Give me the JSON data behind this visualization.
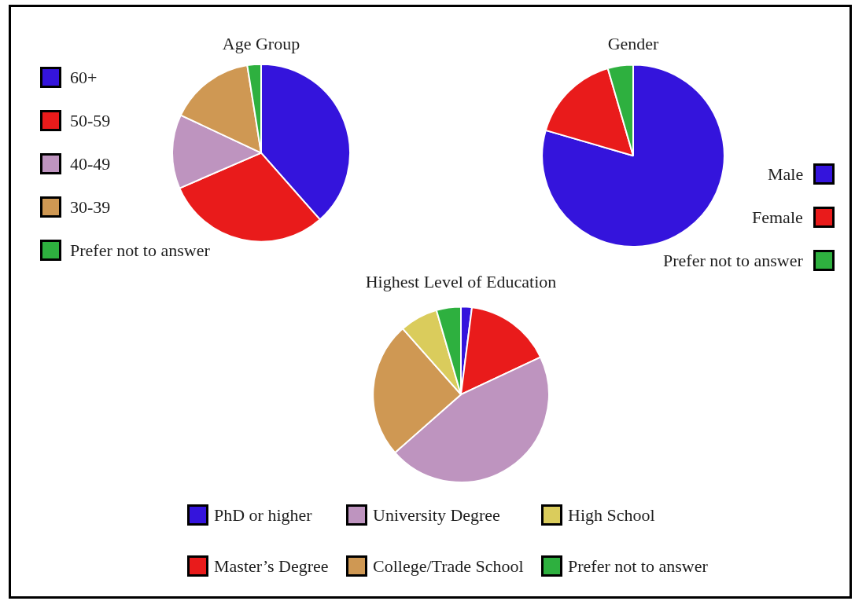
{
  "chart_data": [
    {
      "type": "pie",
      "title": "Age Group",
      "categories": [
        "60+",
        "50-59",
        "40-49",
        "30-39",
        "Prefer not to answer"
      ],
      "values": [
        38.5,
        30,
        13.5,
        15.5,
        2.5
      ],
      "colors": [
        "#3414dc",
        "#e91b1b",
        "#be94bf",
        "#cf9853",
        "#2eb03f"
      ],
      "legend": "left"
    },
    {
      "type": "pie",
      "title": "Gender",
      "categories": [
        "Male",
        "Female",
        "Prefer not to answer"
      ],
      "values": [
        79.5,
        16,
        4.5
      ],
      "colors": [
        "#3414dc",
        "#e91b1b",
        "#2eb03f"
      ],
      "legend": "right"
    },
    {
      "type": "pie",
      "title": "Highest Level of Education",
      "categories": [
        "PhD or higher",
        "Master’s Degree",
        "University Degree",
        "College/Trade School",
        "High School",
        "Prefer not to answer"
      ],
      "values": [
        2,
        16,
        45.5,
        25,
        7,
        4.5
      ],
      "colors": [
        "#3414dc",
        "#e91b1b",
        "#be94bf",
        "#cf9853",
        "#dacc5c",
        "#2eb03f"
      ],
      "legend": "bottom"
    }
  ]
}
